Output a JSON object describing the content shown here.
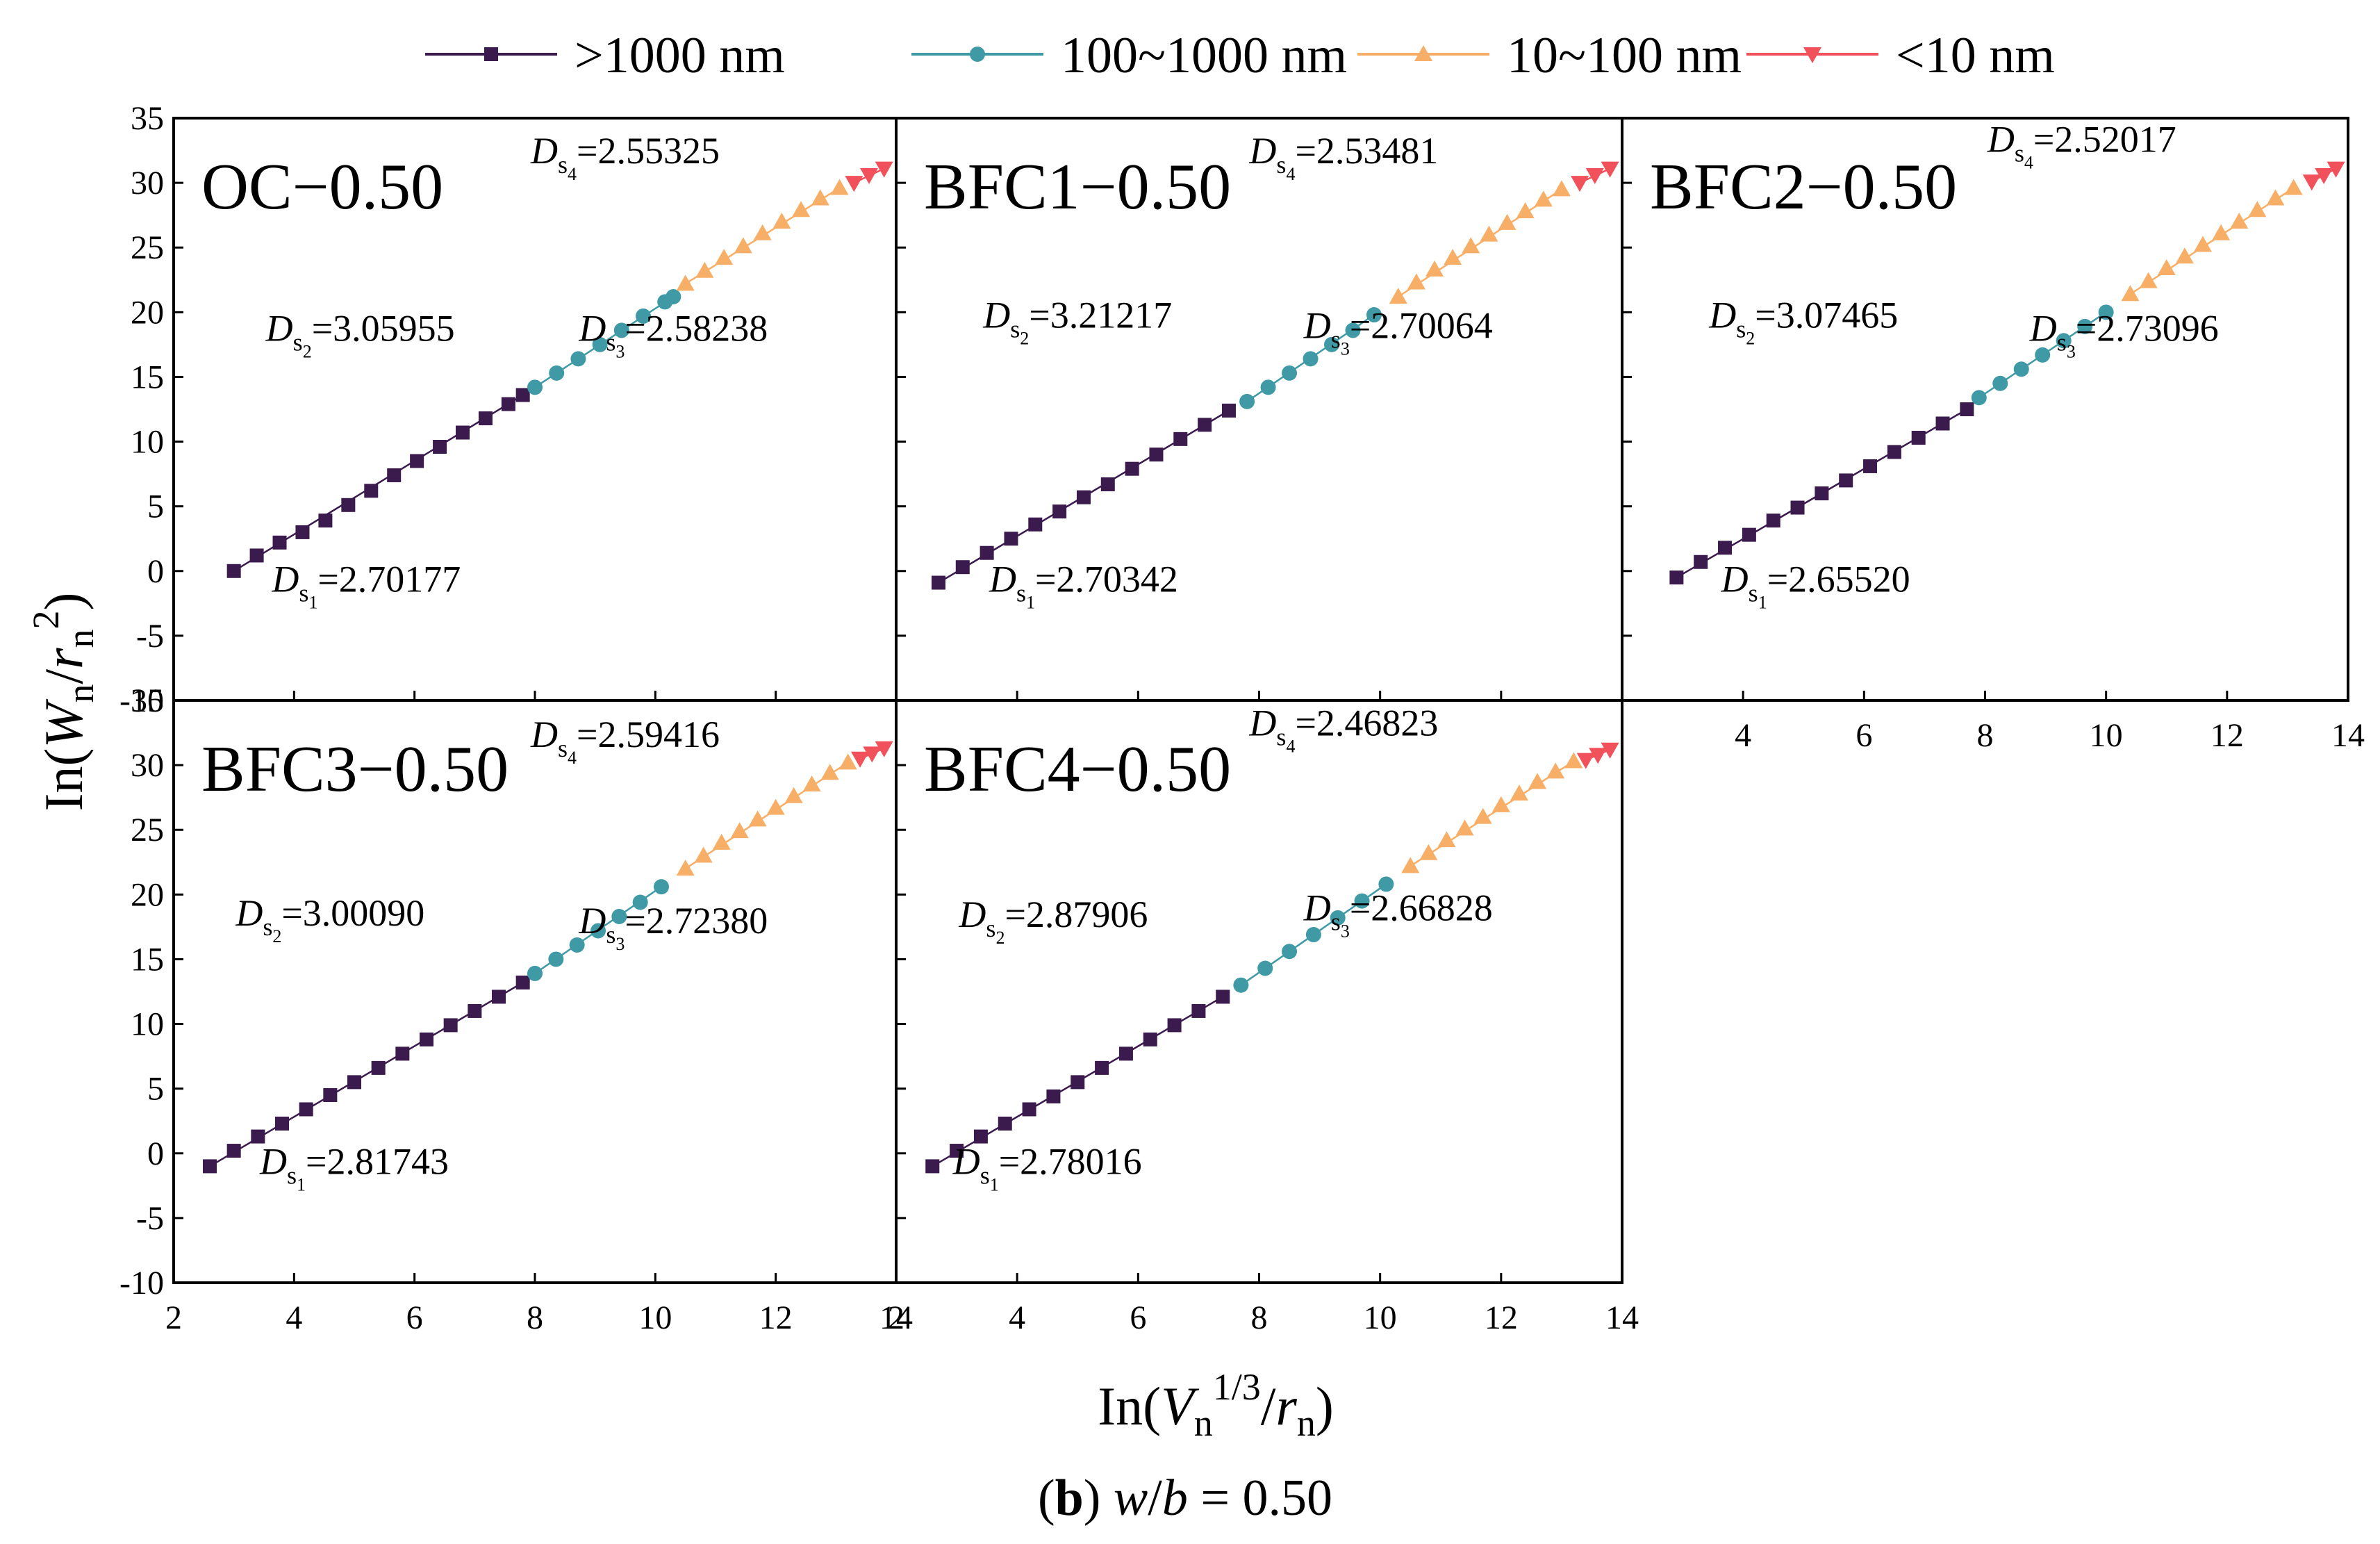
{
  "legend": [
    {
      "label": ">1000 nm",
      "color": "#3b1a4e",
      "marker": "square"
    },
    {
      "label": "100~1000 nm",
      "color": "#3f9aa6",
      "marker": "circle"
    },
    {
      "label": "10~100 nm",
      "color": "#f7ae67",
      "marker": "triangle-up"
    },
    {
      "label": "<10 nm",
      "color": "#f0515a",
      "marker": "triangle-down"
    }
  ],
  "axes": {
    "x_label": {
      "prefix": "In(",
      "V": "V",
      "sub": "n",
      "sup": "1/3",
      "slash": "/",
      "r": "r",
      "sub2": "n",
      "suffix": ")"
    },
    "y_label": {
      "prefix": "In(",
      "W": "W",
      "sub": "n",
      "slash": "/",
      "r": "r",
      "sub2": "n",
      "sup": "2",
      "suffix": ")"
    },
    "x_ticks": [
      2,
      4,
      6,
      8,
      10,
      12,
      14
    ],
    "x_tick_labels": [
      "2",
      "4",
      "6",
      "8",
      "10",
      "12",
      "14"
    ],
    "y_ticks": [
      -10,
      -5,
      0,
      5,
      10,
      15,
      20,
      25,
      30,
      35
    ],
    "y_tick_labels": [
      "-10",
      "-5",
      "0",
      "5",
      "10",
      "15",
      "20",
      "25",
      "30",
      "35"
    ]
  },
  "caption": {
    "open": "(",
    "b": "b",
    "close": ")",
    "w": "w",
    "slash": "/",
    "bvar": "b",
    "eq": " = 0.50"
  },
  "chart_data": [
    {
      "type": "scatter",
      "title": "OC−0.50",
      "xlim": [
        2,
        14
      ],
      "ylim": [
        -10,
        35
      ],
      "xlabel": "In(Vn^1/3/rn)",
      "ylabel": "In(Wn/rn^2)",
      "series": [
        {
          "name": ">1000 nm",
          "x": [
            3.0,
            3.38,
            3.76,
            4.14,
            4.52,
            4.9,
            5.28,
            5.66,
            6.04,
            6.42,
            6.8,
            7.18,
            7.56,
            7.8
          ],
          "y": [
            0.0,
            1.2,
            2.2,
            3.0,
            3.9,
            5.1,
            6.2,
            7.4,
            8.5,
            9.6,
            10.7,
            11.8,
            12.9,
            13.6
          ]
        },
        {
          "name": "100~1000 nm",
          "x": [
            8.0,
            8.36,
            8.72,
            9.08,
            9.44,
            9.8,
            10.16,
            10.3
          ],
          "y": [
            14.2,
            15.3,
            16.4,
            17.5,
            18.6,
            19.7,
            20.8,
            21.2
          ]
        },
        {
          "name": "10~100 nm",
          "x": [
            10.5,
            10.82,
            11.14,
            11.46,
            11.78,
            12.1,
            12.42,
            12.74,
            13.06
          ],
          "y": [
            22.2,
            23.2,
            24.2,
            25.1,
            26.1,
            27.0,
            27.9,
            28.8,
            29.6
          ]
        },
        {
          "name": "<10 nm",
          "x": [
            13.3,
            13.55,
            13.8
          ],
          "y": [
            30.0,
            30.6,
            31.1
          ]
        }
      ],
      "annotations": [
        {
          "value": "=2.70177",
          "sub": "1"
        },
        {
          "value": "=3.05955",
          "sub": "2"
        },
        {
          "value": "=2.58238",
          "sub": "3"
        },
        {
          "value": "=2.55325",
          "sub": "4"
        }
      ]
    },
    {
      "type": "scatter",
      "title": "BFC1−0.50",
      "xlim": [
        2,
        14
      ],
      "ylim": [
        -10,
        35
      ],
      "xlabel": "In(Vn^1/3/rn)",
      "ylabel": "In(Wn/rn^2)",
      "series": [
        {
          "name": ">1000 nm",
          "x": [
            2.7,
            3.1,
            3.5,
            3.9,
            4.3,
            4.7,
            5.1,
            5.5,
            5.9,
            6.3,
            6.7,
            7.1,
            7.5
          ],
          "y": [
            -0.9,
            0.3,
            1.4,
            2.5,
            3.6,
            4.6,
            5.7,
            6.7,
            7.9,
            9.0,
            10.2,
            11.3,
            12.4
          ]
        },
        {
          "name": "100~1000 nm",
          "x": [
            7.8,
            8.15,
            8.5,
            8.85,
            9.2,
            9.55,
            9.9
          ],
          "y": [
            13.1,
            14.2,
            15.3,
            16.4,
            17.5,
            18.6,
            19.8
          ]
        },
        {
          "name": "10~100 nm",
          "x": [
            10.3,
            10.6,
            10.9,
            11.2,
            11.5,
            11.8,
            12.1,
            12.4,
            12.7,
            13.0
          ],
          "y": [
            21.2,
            22.3,
            23.3,
            24.2,
            25.1,
            26.0,
            26.9,
            27.8,
            28.7,
            29.5
          ]
        },
        {
          "name": "<10 nm",
          "x": [
            13.3,
            13.55,
            13.8
          ],
          "y": [
            30.0,
            30.6,
            31.1
          ]
        }
      ],
      "annotations": [
        {
          "value": "=2.70342",
          "sub": "1"
        },
        {
          "value": "=3.21217",
          "sub": "2"
        },
        {
          "value": "=2.70064",
          "sub": "3"
        },
        {
          "value": "=2.53481",
          "sub": "4"
        }
      ]
    },
    {
      "type": "scatter",
      "title": "BFC2−0.50",
      "xlim": [
        2,
        14
      ],
      "ylim": [
        -10,
        35
      ],
      "xlabel": "In(Vn^1/3/rn)",
      "ylabel": "In(Wn/rn^2)",
      "series": [
        {
          "name": ">1000 nm",
          "x": [
            2.9,
            3.3,
            3.7,
            4.1,
            4.5,
            4.9,
            5.3,
            5.7,
            6.1,
            6.5,
            6.9,
            7.3,
            7.7
          ],
          "y": [
            -0.5,
            0.7,
            1.8,
            2.8,
            3.9,
            4.9,
            6.0,
            7.0,
            8.1,
            9.2,
            10.3,
            11.4,
            12.5
          ]
        },
        {
          "name": "100~1000 nm",
          "x": [
            7.9,
            8.25,
            8.6,
            8.95,
            9.3,
            9.65,
            10.0
          ],
          "y": [
            13.4,
            14.5,
            15.6,
            16.7,
            17.8,
            18.9,
            20.0
          ]
        },
        {
          "name": "10~100 nm",
          "x": [
            10.4,
            10.7,
            11.0,
            11.3,
            11.6,
            11.9,
            12.2,
            12.5,
            12.8,
            13.1
          ],
          "y": [
            21.4,
            22.4,
            23.4,
            24.3,
            25.2,
            26.1,
            27.0,
            27.9,
            28.8,
            29.6
          ]
        },
        {
          "name": "<10 nm",
          "x": [
            13.4,
            13.6,
            13.8
          ],
          "y": [
            30.1,
            30.6,
            31.1
          ]
        }
      ],
      "annotations": [
        {
          "value": "=2.65520",
          "sub": "1"
        },
        {
          "value": "=3.07465",
          "sub": "2"
        },
        {
          "value": "=2.73096",
          "sub": "3"
        },
        {
          "value": "=2.52017",
          "sub": "4"
        }
      ]
    },
    {
      "type": "scatter",
      "title": "BFC3−0.50",
      "xlim": [
        2,
        14
      ],
      "ylim": [
        -10,
        35
      ],
      "xlabel": "In(Vn^1/3/rn)",
      "ylabel": "In(Wn/rn^2)",
      "series": [
        {
          "name": ">1000 nm",
          "x": [
            2.6,
            3.0,
            3.4,
            3.8,
            4.2,
            4.6,
            5.0,
            5.4,
            5.8,
            6.2,
            6.6,
            7.0,
            7.4,
            7.8
          ],
          "y": [
            -1.0,
            0.2,
            1.3,
            2.3,
            3.4,
            4.5,
            5.5,
            6.6,
            7.7,
            8.8,
            9.9,
            11.0,
            12.1,
            13.2
          ]
        },
        {
          "name": "100~1000 nm",
          "x": [
            8.0,
            8.35,
            8.7,
            9.05,
            9.4,
            9.75,
            10.1
          ],
          "y": [
            13.9,
            15.0,
            16.1,
            17.2,
            18.3,
            19.4,
            20.6
          ]
        },
        {
          "name": "10~100 nm",
          "x": [
            10.5,
            10.8,
            11.1,
            11.4,
            11.7,
            12.0,
            12.3,
            12.6,
            12.9,
            13.2
          ],
          "y": [
            22.0,
            23.0,
            24.0,
            24.9,
            25.8,
            26.7,
            27.6,
            28.5,
            29.4,
            30.2
          ]
        },
        {
          "name": "<10 nm",
          "x": [
            13.4,
            13.6,
            13.8
          ],
          "y": [
            30.5,
            30.9,
            31.3
          ]
        }
      ],
      "annotations": [
        {
          "value": "=2.81743",
          "sub": "1"
        },
        {
          "value": "=3.00090",
          "sub": "2"
        },
        {
          "value": "=2.72380",
          "sub": "3"
        },
        {
          "value": "=2.59416",
          "sub": "4"
        }
      ]
    },
    {
      "type": "scatter",
      "title": "BFC4−0.50",
      "xlim": [
        2,
        14
      ],
      "ylim": [
        -10,
        35
      ],
      "xlabel": "In(Vn^1/3/rn)",
      "ylabel": "In(Wn/rn^2)",
      "series": [
        {
          "name": ">1000 nm",
          "x": [
            2.6,
            3.0,
            3.4,
            3.8,
            4.2,
            4.6,
            5.0,
            5.4,
            5.8,
            6.2,
            6.6,
            7.0,
            7.4
          ],
          "y": [
            -1.0,
            0.2,
            1.3,
            2.3,
            3.4,
            4.4,
            5.5,
            6.6,
            7.7,
            8.8,
            9.9,
            11.0,
            12.1
          ]
        },
        {
          "name": "100~1000 nm",
          "x": [
            7.7,
            8.1,
            8.5,
            8.9,
            9.3,
            9.7,
            10.1
          ],
          "y": [
            13.0,
            14.3,
            15.6,
            16.9,
            18.2,
            19.5,
            20.8
          ]
        },
        {
          "name": "10~100 nm",
          "x": [
            10.5,
            10.8,
            11.1,
            11.4,
            11.7,
            12.0,
            12.3,
            12.6,
            12.9,
            13.2
          ],
          "y": [
            22.2,
            23.2,
            24.2,
            25.1,
            26.0,
            26.9,
            27.8,
            28.7,
            29.5,
            30.3
          ]
        },
        {
          "name": "<10 nm",
          "x": [
            13.4,
            13.6,
            13.8
          ],
          "y": [
            30.4,
            30.8,
            31.2
          ]
        }
      ],
      "annotations": [
        {
          "value": "=2.78016",
          "sub": "1"
        },
        {
          "value": "=2.87906",
          "sub": "2"
        },
        {
          "value": "=2.66828",
          "sub": "3"
        },
        {
          "value": "=2.46823",
          "sub": "4"
        }
      ]
    }
  ]
}
